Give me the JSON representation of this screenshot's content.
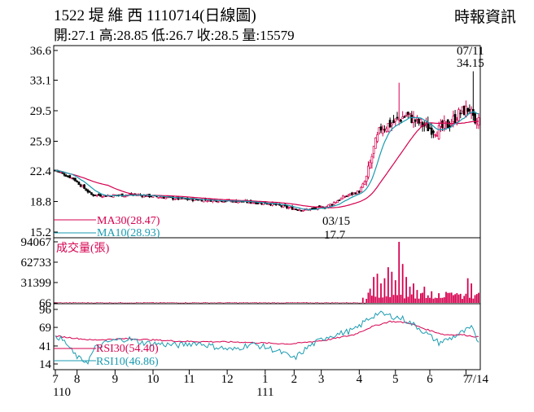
{
  "header": {
    "title": "1522 堤 維 西 1110714(日線圖)",
    "ohlc": "開:27.1 高:28.85 低:26.7 收:28.5 量:15579",
    "source": "時報資訊"
  },
  "colors": {
    "up": "#d6004f",
    "down": "#000000",
    "ma30": "#d6004f",
    "ma10": "#1a9bb0",
    "rsi30": "#d6004f",
    "rsi10": "#1a9bb0",
    "volume": "#d6004f"
  },
  "chart_data": [
    {
      "type": "candlestick",
      "name": "price",
      "yticks": [
        "36.6",
        "33.1",
        "29.5",
        "25.9",
        "22.4",
        "18.8",
        "15.2"
      ],
      "ylim": [
        15.2,
        36.6
      ],
      "series": [
        {
          "name": "MA30",
          "label": "MA30(28.47)"
        },
        {
          "name": "MA10",
          "label": "MA10(28.93)"
        }
      ],
      "annotations": {
        "high_date": "07/11",
        "high_value": "34.15",
        "low_date": "03/15",
        "low_value": "17.7"
      },
      "close_keypoints": [
        [
          0,
          22.5
        ],
        [
          10,
          21.5
        ],
        [
          20,
          19.6
        ],
        [
          28,
          19.5
        ],
        [
          45,
          19.6
        ],
        [
          70,
          19.1
        ],
        [
          95,
          18.9
        ],
        [
          118,
          18.6
        ],
        [
          128,
          18.1
        ],
        [
          138,
          17.8
        ],
        [
          150,
          18.2
        ],
        [
          160,
          19.4
        ],
        [
          168,
          20.0
        ],
        [
          172,
          21.5
        ],
        [
          176,
          25.0
        ],
        [
          180,
          27.5
        ],
        [
          186,
          28.0
        ],
        [
          194,
          29.0
        ],
        [
          200,
          28.2
        ],
        [
          206,
          27.5
        ],
        [
          212,
          27.2
        ],
        [
          218,
          28.0
        ],
        [
          224,
          29.3
        ],
        [
          229,
          29.8
        ],
        [
          232,
          27.5
        ],
        [
          234,
          28.5
        ]
      ],
      "notable_highs": {
        "190": 32.8,
        "231": 34.15
      },
      "num_days": 235
    },
    {
      "type": "bar",
      "name": "volume",
      "label": "成交量(張)",
      "yticks": [
        "94067",
        "62733",
        "31399",
        "66"
      ],
      "ylim": [
        66,
        94067
      ],
      "spikes": {
        "170": 8000,
        "174": 22000,
        "176": 40000,
        "178": 45000,
        "180": 30000,
        "182": 38000,
        "184": 55000,
        "186": 48000,
        "188": 35000,
        "190": 94067,
        "192": 60000,
        "194": 40000,
        "196": 25000,
        "198": 30000,
        "200": 20000,
        "204": 25000,
        "208": 18000,
        "212": 15000,
        "216": 17000,
        "220": 12000,
        "224": 14000,
        "228": 38000,
        "230": 30000,
        "232": 12000,
        "234": 15579
      }
    },
    {
      "type": "line",
      "name": "rsi",
      "yticks": [
        "96",
        "69",
        "41",
        "14"
      ],
      "ylim": [
        14,
        96
      ],
      "series": [
        {
          "name": "RSI30",
          "label": "RSI30(54.40)"
        },
        {
          "name": "RSI10",
          "label": "RSI10(46.86)"
        }
      ],
      "rsi10_keypoints": [
        [
          0,
          58
        ],
        [
          6,
          45
        ],
        [
          10,
          30
        ],
        [
          14,
          20
        ],
        [
          18,
          18
        ],
        [
          22,
          38
        ],
        [
          30,
          48
        ],
        [
          40,
          52
        ],
        [
          48,
          46
        ],
        [
          58,
          44
        ],
        [
          68,
          42
        ],
        [
          78,
          46
        ],
        [
          88,
          40
        ],
        [
          98,
          35
        ],
        [
          108,
          44
        ],
        [
          118,
          38
        ],
        [
          126,
          30
        ],
        [
          132,
          22
        ],
        [
          140,
          40
        ],
        [
          150,
          55
        ],
        [
          158,
          60
        ],
        [
          166,
          66
        ],
        [
          172,
          80
        ],
        [
          178,
          90
        ],
        [
          186,
          86
        ],
        [
          192,
          82
        ],
        [
          200,
          70
        ],
        [
          206,
          58
        ],
        [
          212,
          46
        ],
        [
          218,
          52
        ],
        [
          224,
          60
        ],
        [
          230,
          68
        ],
        [
          234,
          46.86
        ]
      ],
      "rsi30_keypoints": [
        [
          0,
          56
        ],
        [
          20,
          50
        ],
        [
          40,
          52
        ],
        [
          70,
          48
        ],
        [
          100,
          47
        ],
        [
          130,
          44
        ],
        [
          150,
          50
        ],
        [
          165,
          58
        ],
        [
          175,
          70
        ],
        [
          185,
          78
        ],
        [
          195,
          76
        ],
        [
          205,
          66
        ],
        [
          215,
          58
        ],
        [
          225,
          58
        ],
        [
          234,
          54.4
        ]
      ]
    }
  ],
  "x_axis": {
    "months": [
      {
        "label": "7",
        "day": 0
      },
      {
        "label": "8",
        "day": 12
      },
      {
        "label": "9",
        "day": 33
      },
      {
        "label": "10",
        "day": 54
      },
      {
        "label": "11",
        "day": 74
      },
      {
        "label": "12",
        "day": 95
      },
      {
        "label": "1",
        "day": 116
      },
      {
        "label": "2",
        "day": 132
      },
      {
        "label": "3",
        "day": 147
      },
      {
        "label": "4",
        "day": 168
      },
      {
        "label": "5",
        "day": 188
      },
      {
        "label": "6",
        "day": 207
      },
      {
        "label": "7",
        "day": 227
      },
      {
        "label": "7/14",
        "day": 234
      }
    ],
    "year_start": "110",
    "year_end": "111",
    "year_end_day": 116
  }
}
